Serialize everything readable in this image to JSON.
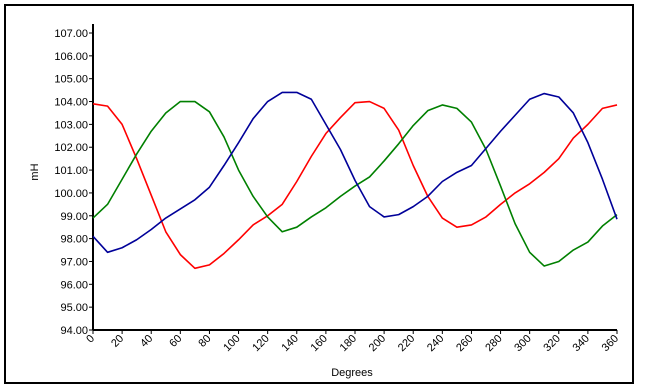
{
  "chart_data": {
    "type": "line",
    "xlabel": "Degrees",
    "ylabel": "mH",
    "xlim": [
      0,
      360
    ],
    "ylim": [
      94,
      107
    ],
    "grid": false,
    "x_ticks": [
      "0",
      "20",
      "40",
      "60",
      "80",
      "100",
      "120",
      "140",
      "160",
      "180",
      "200",
      "220",
      "240",
      "260",
      "280",
      "300",
      "320",
      "340",
      "360"
    ],
    "y_ticks": [
      "94.00",
      "95.00",
      "96.00",
      "97.00",
      "98.00",
      "99.00",
      "100.00",
      "101.00",
      "102.00",
      "103.00",
      "104.00",
      "105.00",
      "106.00",
      "107.00"
    ],
    "x": [
      0,
      10,
      20,
      30,
      40,
      50,
      60,
      70,
      80,
      90,
      100,
      110,
      120,
      130,
      140,
      150,
      160,
      170,
      180,
      190,
      200,
      210,
      220,
      230,
      240,
      250,
      260,
      270,
      280,
      290,
      300,
      310,
      320,
      330,
      340,
      350,
      360
    ],
    "series": [
      {
        "color": "#ff0000",
        "values": [
          103.9,
          103.8,
          103.0,
          101.5,
          99.9,
          98.3,
          97.3,
          96.7,
          96.85,
          97.35,
          97.95,
          98.6,
          99.0,
          99.5,
          100.5,
          101.6,
          102.6,
          103.3,
          103.95,
          104.0,
          103.7,
          102.75,
          101.2,
          99.85,
          98.9,
          98.5,
          98.6,
          98.95,
          99.5,
          100.0,
          100.4,
          100.9,
          101.5,
          102.4,
          103.0,
          103.7,
          103.85
        ]
      },
      {
        "color": "#008000",
        "values": [
          98.9,
          99.5,
          100.6,
          101.7,
          102.7,
          103.5,
          104.0,
          104.0,
          103.55,
          102.45,
          101.0,
          99.85,
          98.95,
          98.3,
          98.5,
          98.95,
          99.35,
          99.85,
          100.3,
          100.7,
          101.4,
          102.15,
          102.95,
          103.6,
          103.85,
          103.7,
          103.1,
          101.9,
          100.3,
          98.65,
          97.4,
          96.8,
          97.0,
          97.5,
          97.85,
          98.55,
          99.05
        ]
      },
      {
        "color": "#000099",
        "values": [
          98.1,
          97.4,
          97.6,
          97.95,
          98.4,
          98.9,
          99.3,
          99.7,
          100.25,
          101.2,
          102.2,
          103.25,
          104.0,
          104.4,
          104.4,
          104.1,
          103.0,
          101.9,
          100.55,
          99.4,
          98.95,
          99.05,
          99.4,
          99.85,
          100.5,
          100.9,
          101.2,
          101.95,
          102.7,
          103.4,
          104.1,
          104.35,
          104.2,
          103.5,
          102.2,
          100.6,
          98.85
        ]
      }
    ]
  }
}
